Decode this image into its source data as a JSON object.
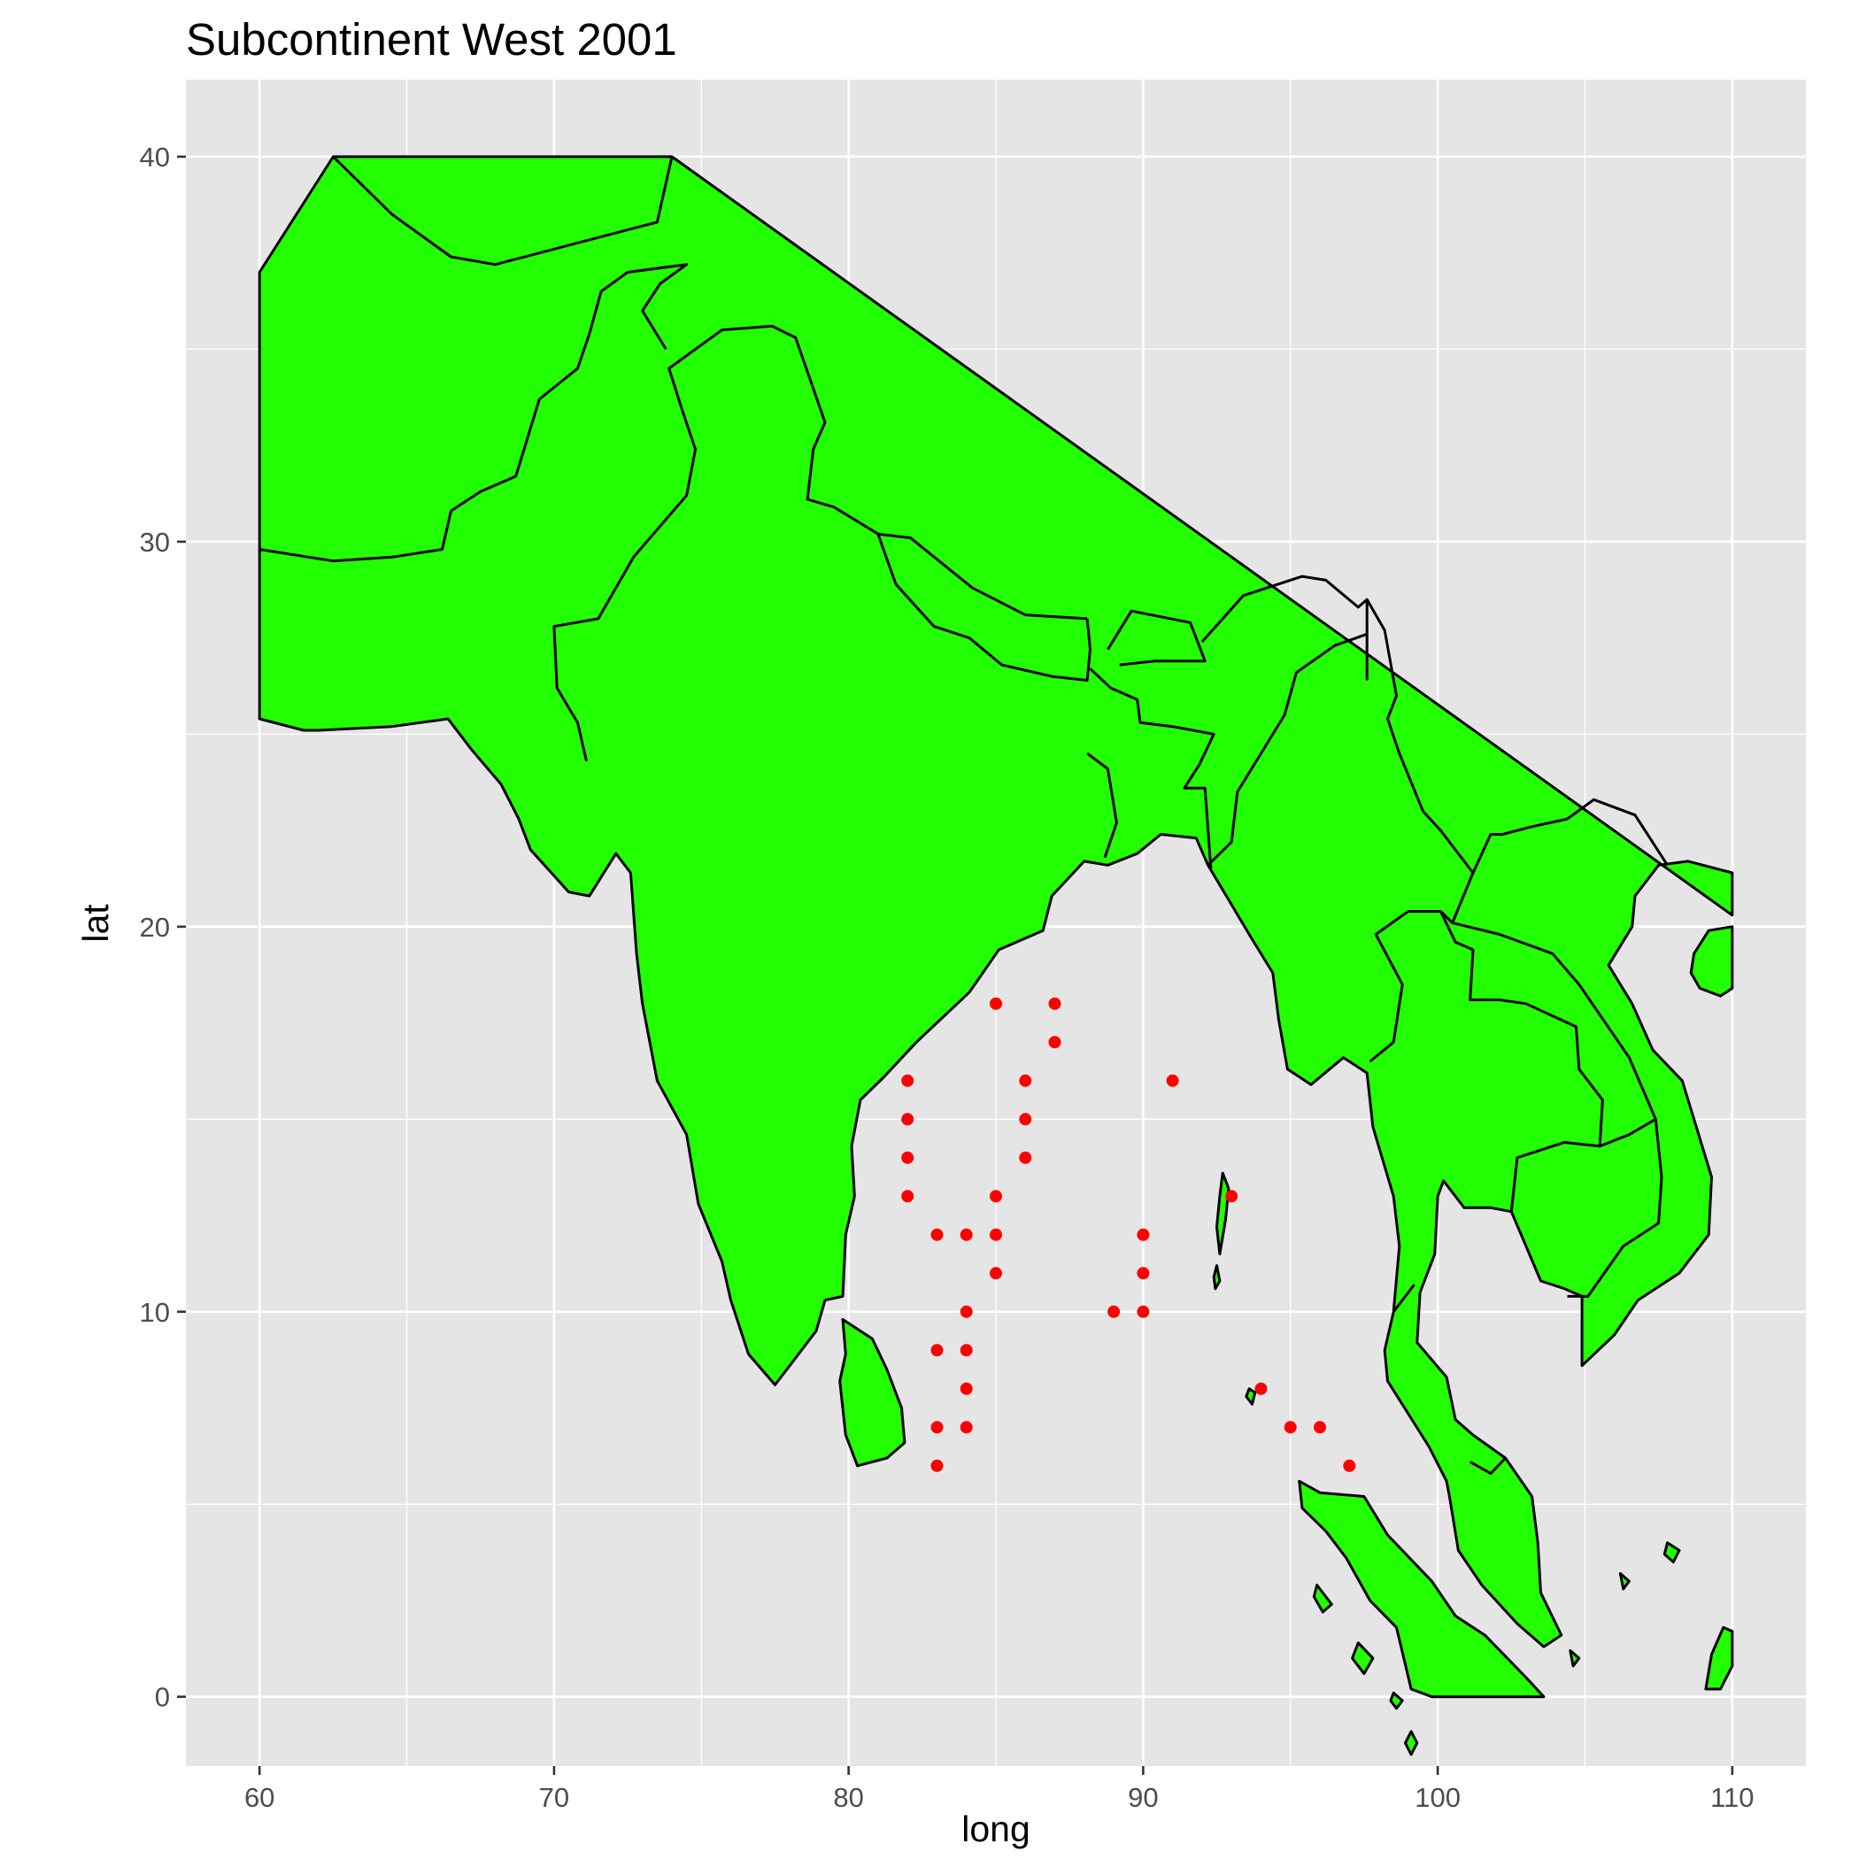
{
  "chart_data": {
    "type": "scatter",
    "title": "Subcontinent West 2001",
    "xlabel": "long",
    "ylabel": "lat",
    "xlim": [
      57.5,
      112.5
    ],
    "ylim": [
      -1.8,
      42.0
    ],
    "x_ticks": [
      60,
      70,
      80,
      90,
      100,
      110
    ],
    "y_ticks": [
      0,
      10,
      20,
      30,
      40
    ],
    "x_tick_labels": [
      "60",
      "70",
      "80",
      "90",
      "100",
      "110"
    ],
    "y_tick_labels": [
      "0",
      "10",
      "20",
      "30",
      "40"
    ],
    "grid": true,
    "legend": "none",
    "background": "map of South and Southeast Asia (country outlines)",
    "land_color": "#22ff00",
    "outline_color": "#000000",
    "point_color": "#ff0000",
    "panel_color": "#e5e5e5",
    "series": [
      {
        "points": [
          {
            "x": 82,
            "y": 16
          },
          {
            "x": 82,
            "y": 15
          },
          {
            "x": 82,
            "y": 14
          },
          {
            "x": 82,
            "y": 13
          },
          {
            "x": 83,
            "y": 12
          },
          {
            "x": 84,
            "y": 12
          },
          {
            "x": 83,
            "y": 9
          },
          {
            "x": 83,
            "y": 7
          },
          {
            "x": 83,
            "y": 6
          },
          {
            "x": 84,
            "y": 10
          },
          {
            "x": 84,
            "y": 9
          },
          {
            "x": 84,
            "y": 8
          },
          {
            "x": 84,
            "y": 7
          },
          {
            "x": 85,
            "y": 18
          },
          {
            "x": 85,
            "y": 13
          },
          {
            "x": 85,
            "y": 12
          },
          {
            "x": 85,
            "y": 11
          },
          {
            "x": 86,
            "y": 16
          },
          {
            "x": 86,
            "y": 15
          },
          {
            "x": 86,
            "y": 14
          },
          {
            "x": 87,
            "y": 18
          },
          {
            "x": 87,
            "y": 17
          },
          {
            "x": 89,
            "y": 10
          },
          {
            "x": 90,
            "y": 12
          },
          {
            "x": 90,
            "y": 11
          },
          {
            "x": 90,
            "y": 10
          },
          {
            "x": 91,
            "y": 16
          },
          {
            "x": 93,
            "y": 13
          },
          {
            "x": 94,
            "y": 8
          },
          {
            "x": 95,
            "y": 7
          },
          {
            "x": 96,
            "y": 7
          },
          {
            "x": 97,
            "y": 6
          }
        ]
      }
    ]
  }
}
